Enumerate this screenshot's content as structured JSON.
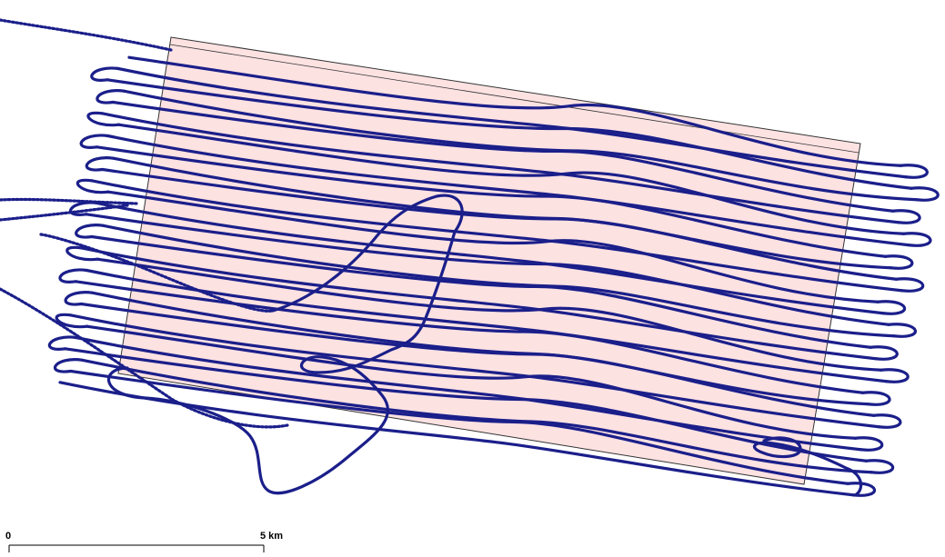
{
  "colors": {
    "survey_area_fill": "#fde2e2",
    "survey_area_stroke": "#333333",
    "flight_track": "#1b1f8a",
    "scale_bar": "#000000"
  },
  "scale_bar": {
    "start_label": "0",
    "end_label": "5 km"
  }
}
